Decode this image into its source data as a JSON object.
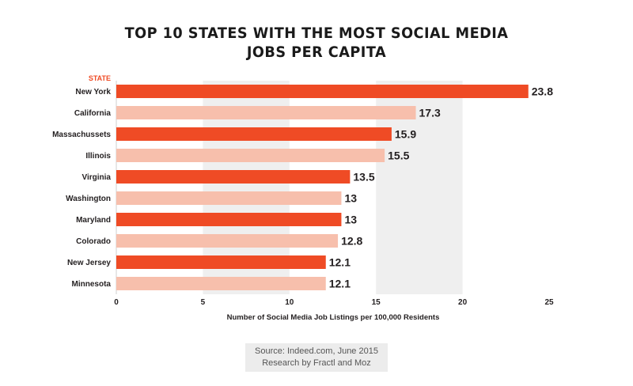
{
  "title_line1": "TOP 10 STATES WITH THE MOST SOCIAL MEDIA",
  "title_line2": "JOBS PER CAPITA",
  "source_line1": "Source: Indeed.com, June 2015",
  "source_line2": "Research by Fractl and Moz",
  "colors": {
    "dark": "#ef4b25",
    "light": "#f7bfac",
    "band": "#efefef",
    "axis_label": "#ef4b25"
  },
  "chart_data": {
    "type": "bar",
    "orientation": "horizontal",
    "title": "TOP 10 STATES WITH THE MOST SOCIAL MEDIA JOBS PER CAPITA",
    "ylabel": "STATE",
    "xlabel": "Number of Social Media Job Listings per 100,000 Residents",
    "categories": [
      "New York",
      "California",
      "Massachussets",
      "Illinois",
      "Virginia",
      "Washington",
      "Maryland",
      "Colorado",
      "New Jersey",
      "Minnesota"
    ],
    "values": [
      23.8,
      17.3,
      15.9,
      15.5,
      13.5,
      13,
      13,
      12.8,
      12.1,
      12.1
    ],
    "value_labels": [
      "23.8",
      "17.3",
      "15.9",
      "15.5",
      "13.5",
      "13",
      "13",
      "12.8",
      "12.1",
      "12.1"
    ],
    "xlim": [
      0,
      25
    ],
    "xticks": [
      0,
      5,
      10,
      15,
      20,
      25
    ],
    "alternating_band_background": true
  }
}
